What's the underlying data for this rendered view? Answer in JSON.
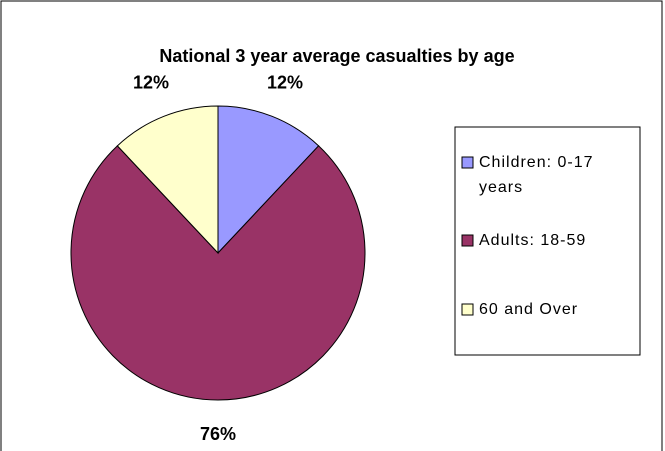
{
  "chart_data": {
    "type": "pie",
    "title": "National 3 year average casualties by age",
    "categories": [
      "Children: 0-17 years",
      "Adults: 18-59",
      "60 and Over"
    ],
    "values": [
      12,
      76,
      12
    ],
    "value_labels": [
      "12%",
      "76%",
      "12%"
    ],
    "colors": [
      "#9999ff",
      "#993366",
      "#ffffcc"
    ],
    "legend": "right"
  }
}
